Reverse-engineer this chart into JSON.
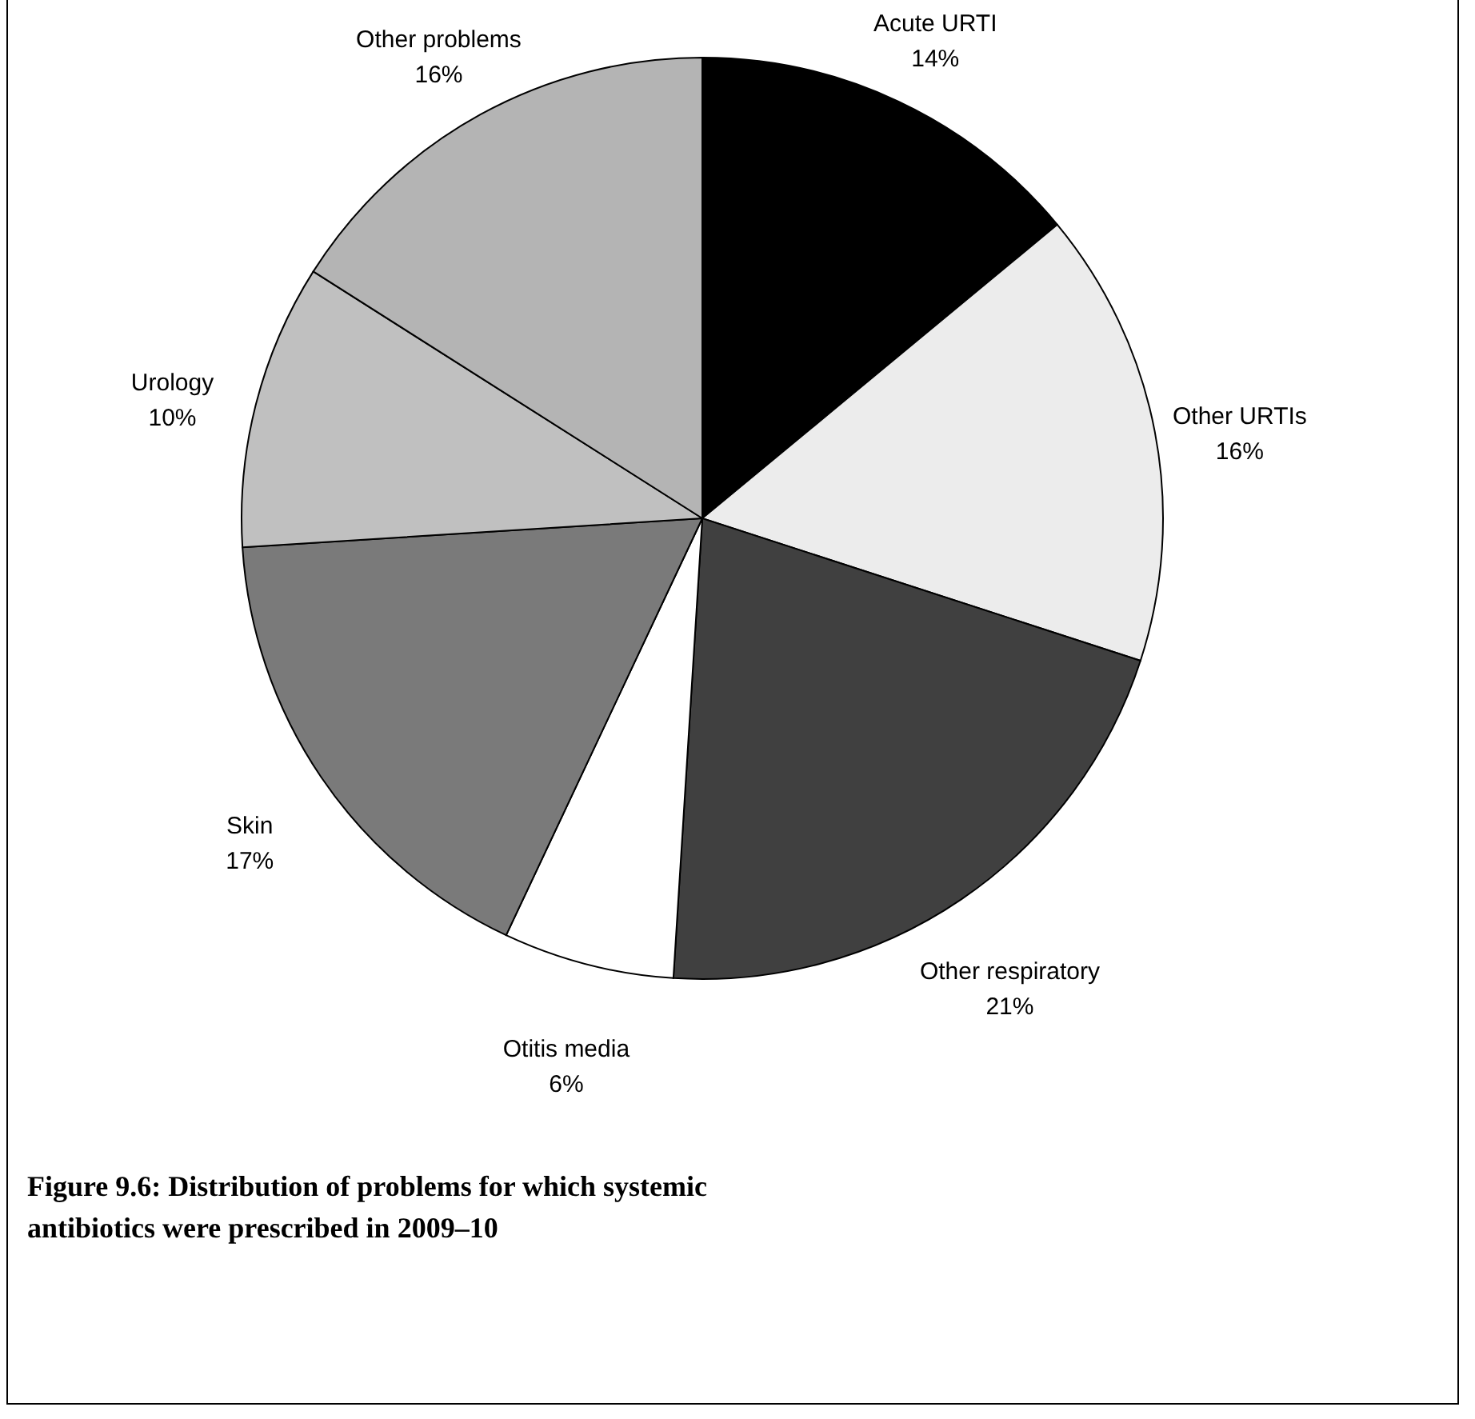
{
  "chart_data": {
    "type": "pie",
    "title": "Figure 9.6: Distribution of problems for which systemic antibiotics were prescribed in 2009–10",
    "categories": [
      "Acute URTI",
      "Other URTIs",
      "Other respiratory",
      "Otitis media",
      "Skin",
      "Urology",
      "Other problems"
    ],
    "values": [
      14,
      16,
      21,
      6,
      17,
      10,
      16
    ],
    "value_labels": [
      "14%",
      "16%",
      "21%",
      "6%",
      "17%",
      "10%",
      "16%"
    ],
    "colors": [
      "#000000",
      "#ececec",
      "#404040",
      "#ffffff",
      "#7a7a7a",
      "#c0c0c0",
      "#b4b4b4"
    ],
    "legend": false
  }
}
